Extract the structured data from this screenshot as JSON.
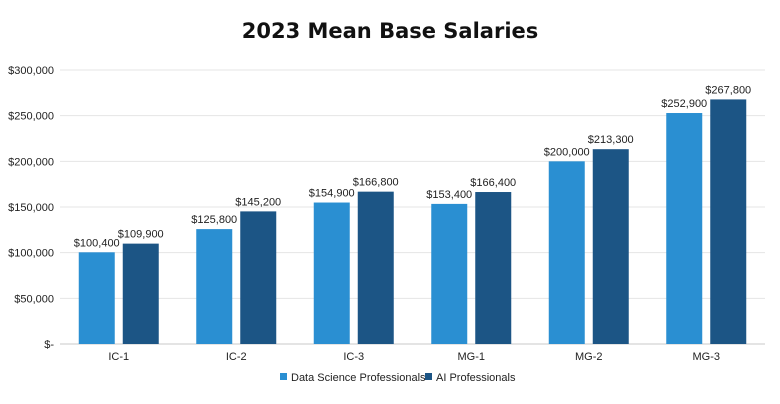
{
  "chart_data": {
    "type": "bar",
    "title": "2023 Mean Base Salaries",
    "xlabel": "",
    "ylabel": "",
    "categories": [
      "IC-1",
      "IC-2",
      "IC-3",
      "MG-1",
      "MG-2",
      "MG-3"
    ],
    "series": [
      {
        "name": "Data Science Professionals",
        "color": "#2a8fd2",
        "values": [
          100400,
          125800,
          154900,
          153400,
          200000,
          252900
        ],
        "labels": [
          "$100,400",
          "$125,800",
          "$154,900",
          "$153,400",
          "$200,000",
          "$252,900"
        ]
      },
      {
        "name": "AI Professionals",
        "color": "#1c5585",
        "values": [
          109900,
          145200,
          166800,
          166400,
          213300,
          267800
        ],
        "labels": [
          "$109,900",
          "$145,200",
          "$166,800",
          "$166,400",
          "$213,300",
          "$267,800"
        ]
      }
    ],
    "ylim": [
      0,
      300000
    ],
    "yticks": [
      0,
      50000,
      100000,
      150000,
      200000,
      250000,
      300000
    ],
    "ytick_labels": [
      "$-",
      "$50,000",
      "$100,000",
      "$150,000",
      "$200,000",
      "$250,000",
      "$300,000"
    ],
    "grid": true,
    "legend_position": "bottom"
  }
}
